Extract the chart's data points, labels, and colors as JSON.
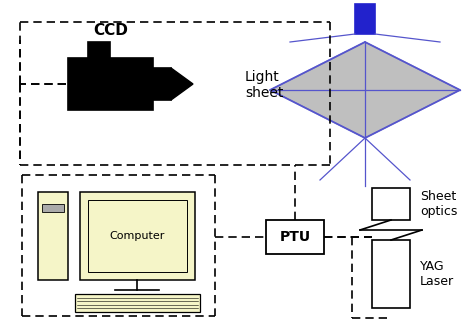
{
  "bg_color": "#ffffff",
  "lens_line": "#5555cc",
  "laser_blue": "#2222cc",
  "computer_body": "#f5f5c8",
  "labels": {
    "ccd": "CCD",
    "light_sheet": "Light\nsheet",
    "computer": "Computer",
    "ptu": "PTU",
    "sheet_optics": "Sheet\noptics",
    "yag_laser": "YAG\nLaser"
  },
  "fig_width": 4.74,
  "fig_height": 3.26,
  "dpi": 100
}
